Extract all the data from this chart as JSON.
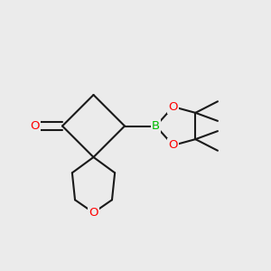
{
  "bg_color": "#ebebeb",
  "bond_color": "#1a1a1a",
  "atom_colors": {
    "O": "#ff0000",
    "B": "#00bb00",
    "C": "#1a1a1a"
  },
  "line_width": 1.5,
  "figsize": [
    3.0,
    3.0
  ],
  "dpi": 100
}
